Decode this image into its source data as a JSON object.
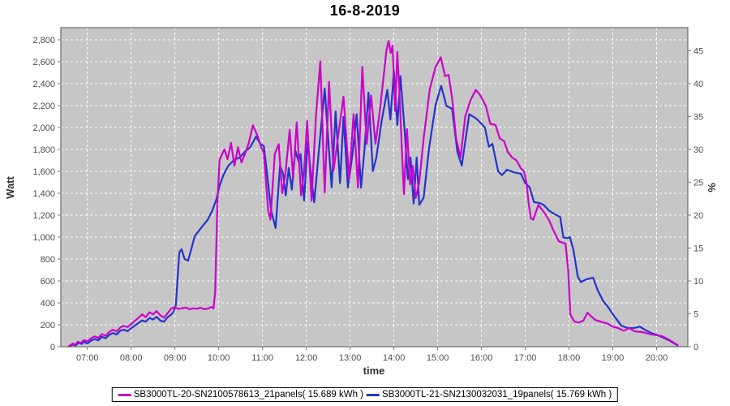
{
  "chart_data": {
    "type": "line",
    "title": "16-8-2019",
    "xlabel": "time",
    "ylabel_left": "Watt",
    "ylabel_right": "%",
    "grid": true,
    "legend_position": "bottom",
    "plot_background": "#c6c6c6",
    "gridline_color": "#ffffff",
    "border_color": "#555555",
    "tick_color": "#777777",
    "x_ticks": [
      "07:00",
      "08:00",
      "09:00",
      "10:00",
      "11:00",
      "12:00",
      "13:00",
      "14:00",
      "15:00",
      "16:00",
      "17:00",
      "18:00",
      "19:00",
      "20:00"
    ],
    "y_left_ticks": [
      "0",
      "200",
      "400",
      "600",
      "800",
      "1,000",
      "1,200",
      "1,400",
      "1,600",
      "1,800",
      "2,000",
      "2,200",
      "2,400",
      "2,600",
      "2,800"
    ],
    "y_right_ticks": [
      "0",
      "5",
      "10",
      "15",
      "20",
      "25",
      "30",
      "35",
      "40",
      "45"
    ],
    "x_range_hours": [
      6.394,
      20.713
    ],
    "y_left_range": [
      0,
      2911
    ],
    "y_right_range": [
      0,
      48.5
    ],
    "series": [
      {
        "name": "SB3000TL-20-SN2100578613_21panels( 15.689 kWh )",
        "color": "#cc00cc",
        "points": [
          [
            6.58,
            5
          ],
          [
            6.67,
            30
          ],
          [
            6.72,
            15
          ],
          [
            6.78,
            45
          ],
          [
            6.85,
            35
          ],
          [
            6.92,
            60
          ],
          [
            7.0,
            50
          ],
          [
            7.08,
            75
          ],
          [
            7.17,
            95
          ],
          [
            7.25,
            80
          ],
          [
            7.33,
            115
          ],
          [
            7.42,
            100
          ],
          [
            7.5,
            135
          ],
          [
            7.58,
            155
          ],
          [
            7.67,
            140
          ],
          [
            7.75,
            175
          ],
          [
            7.83,
            190
          ],
          [
            7.92,
            180
          ],
          [
            8.0,
            205
          ],
          [
            8.08,
            235
          ],
          [
            8.17,
            265
          ],
          [
            8.25,
            295
          ],
          [
            8.33,
            270
          ],
          [
            8.42,
            315
          ],
          [
            8.5,
            295
          ],
          [
            8.58,
            325
          ],
          [
            8.67,
            285
          ],
          [
            8.75,
            265
          ],
          [
            8.83,
            305
          ],
          [
            8.92,
            350
          ],
          [
            9.0,
            360
          ],
          [
            9.08,
            345
          ],
          [
            9.17,
            352
          ],
          [
            9.25,
            358
          ],
          [
            9.33,
            342
          ],
          [
            9.42,
            350
          ],
          [
            9.5,
            346
          ],
          [
            9.58,
            356
          ],
          [
            9.67,
            342
          ],
          [
            9.75,
            348
          ],
          [
            9.83,
            362
          ],
          [
            9.88,
            350
          ],
          [
            9.92,
            500
          ],
          [
            9.97,
            1300
          ],
          [
            10.02,
            1704
          ],
          [
            10.08,
            1760
          ],
          [
            10.13,
            1800
          ],
          [
            10.2,
            1710
          ],
          [
            10.28,
            1860
          ],
          [
            10.36,
            1650
          ],
          [
            10.44,
            1820
          ],
          [
            10.52,
            1680
          ],
          [
            10.6,
            1760
          ],
          [
            10.68,
            1850
          ],
          [
            10.78,
            2020
          ],
          [
            10.88,
            1930
          ],
          [
            10.97,
            1820
          ],
          [
            11.03,
            1768
          ],
          [
            11.08,
            1500
          ],
          [
            11.13,
            1240
          ],
          [
            11.18,
            1160
          ],
          [
            11.28,
            1760
          ],
          [
            11.37,
            1849
          ],
          [
            11.45,
            1400
          ],
          [
            11.52,
            1560
          ],
          [
            11.62,
            1980
          ],
          [
            11.7,
            1541
          ],
          [
            11.78,
            2047
          ],
          [
            11.88,
            1380
          ],
          [
            11.95,
            1600
          ],
          [
            12.02,
            2059
          ],
          [
            12.12,
            1331
          ],
          [
            12.22,
            2100
          ],
          [
            12.32,
            2602
          ],
          [
            12.42,
            1405
          ],
          [
            12.52,
            2417
          ],
          [
            12.62,
            1602
          ],
          [
            12.72,
            1900
          ],
          [
            12.85,
            2281
          ],
          [
            12.98,
            1528
          ],
          [
            13.08,
            2121
          ],
          [
            13.18,
            1452
          ],
          [
            13.28,
            2553
          ],
          [
            13.38,
            1849
          ],
          [
            13.48,
            2294
          ],
          [
            13.58,
            1850
          ],
          [
            13.68,
            2150
          ],
          [
            13.83,
            2700
          ],
          [
            13.88,
            2791
          ],
          [
            13.93,
            2680
          ],
          [
            13.97,
            2746
          ],
          [
            14.03,
            2150
          ],
          [
            14.08,
            2690
          ],
          [
            14.13,
            2300
          ],
          [
            14.18,
            1825
          ],
          [
            14.23,
            1393
          ],
          [
            14.3,
            1985
          ],
          [
            14.37,
            1479
          ],
          [
            14.43,
            1650
          ],
          [
            14.5,
            1356
          ],
          [
            14.58,
            1500
          ],
          [
            14.68,
            1900
          ],
          [
            14.82,
            2350
          ],
          [
            14.95,
            2550
          ],
          [
            15.07,
            2640
          ],
          [
            15.17,
            2467
          ],
          [
            15.25,
            2479
          ],
          [
            15.33,
            2270
          ],
          [
            15.42,
            1900
          ],
          [
            15.52,
            1726
          ],
          [
            15.63,
            2100
          ],
          [
            15.75,
            2250
          ],
          [
            15.87,
            2343
          ],
          [
            15.97,
            2295
          ],
          [
            16.1,
            2196
          ],
          [
            16.2,
            2035
          ],
          [
            16.32,
            2022
          ],
          [
            16.42,
            1900
          ],
          [
            16.52,
            1874
          ],
          [
            16.6,
            1776
          ],
          [
            16.7,
            1726
          ],
          [
            16.8,
            1700
          ],
          [
            16.9,
            1627
          ],
          [
            16.97,
            1602
          ],
          [
            17.03,
            1491
          ],
          [
            17.08,
            1300
          ],
          [
            17.13,
            1170
          ],
          [
            17.18,
            1158
          ],
          [
            17.3,
            1294
          ],
          [
            17.42,
            1232
          ],
          [
            17.55,
            1150
          ],
          [
            17.63,
            1072
          ],
          [
            17.77,
            961
          ],
          [
            17.92,
            940
          ],
          [
            17.98,
            700
          ],
          [
            18.03,
            294
          ],
          [
            18.12,
            230
          ],
          [
            18.22,
            220
          ],
          [
            18.33,
            240
          ],
          [
            18.42,
            310
          ],
          [
            18.5,
            280
          ],
          [
            18.6,
            244
          ],
          [
            18.75,
            225
          ],
          [
            18.88,
            210
          ],
          [
            19.0,
            183
          ],
          [
            19.12,
            170
          ],
          [
            19.25,
            146
          ],
          [
            19.37,
            170
          ],
          [
            19.5,
            140
          ],
          [
            19.68,
            133
          ],
          [
            19.85,
            115
          ],
          [
            20.0,
            105
          ],
          [
            20.12,
            96
          ],
          [
            20.3,
            60
          ],
          [
            20.42,
            30
          ],
          [
            20.48,
            15
          ]
        ]
      },
      {
        "name": "SB3000TL-21-SN2130032031_19panels( 15.769 kWh )",
        "color": "#2433cb",
        "points": [
          [
            6.58,
            3
          ],
          [
            6.67,
            20
          ],
          [
            6.73,
            10
          ],
          [
            6.8,
            35
          ],
          [
            6.87,
            25
          ],
          [
            6.93,
            45
          ],
          [
            7.0,
            28
          ],
          [
            7.08,
            55
          ],
          [
            7.17,
            70
          ],
          [
            7.25,
            58
          ],
          [
            7.33,
            90
          ],
          [
            7.42,
            78
          ],
          [
            7.5,
            108
          ],
          [
            7.58,
            125
          ],
          [
            7.67,
            112
          ],
          [
            7.75,
            145
          ],
          [
            7.83,
            155
          ],
          [
            7.92,
            142
          ],
          [
            8.0,
            168
          ],
          [
            8.08,
            192
          ],
          [
            8.17,
            218
          ],
          [
            8.25,
            240
          ],
          [
            8.33,
            228
          ],
          [
            8.42,
            262
          ],
          [
            8.5,
            248
          ],
          [
            8.58,
            272
          ],
          [
            8.67,
            238
          ],
          [
            8.75,
            228
          ],
          [
            8.83,
            268
          ],
          [
            8.92,
            295
          ],
          [
            8.97,
            320
          ],
          [
            9.02,
            380
          ],
          [
            9.05,
            563
          ],
          [
            9.1,
            859
          ],
          [
            9.15,
            889
          ],
          [
            9.22,
            800
          ],
          [
            9.3,
            785
          ],
          [
            9.38,
            900
          ],
          [
            9.45,
            1007
          ],
          [
            9.55,
            1060
          ],
          [
            9.65,
            1111
          ],
          [
            9.75,
            1160
          ],
          [
            9.85,
            1240
          ],
          [
            9.95,
            1350
          ],
          [
            10.02,
            1467
          ],
          [
            10.1,
            1560
          ],
          [
            10.22,
            1652
          ],
          [
            10.35,
            1704
          ],
          [
            10.48,
            1726
          ],
          [
            10.6,
            1780
          ],
          [
            10.72,
            1820
          ],
          [
            10.85,
            1916
          ],
          [
            10.95,
            1850
          ],
          [
            11.03,
            1830
          ],
          [
            11.1,
            1594
          ],
          [
            11.2,
            1237
          ],
          [
            11.3,
            1084
          ],
          [
            11.4,
            1650
          ],
          [
            11.47,
            1580
          ],
          [
            11.53,
            1380
          ],
          [
            11.6,
            1630
          ],
          [
            11.67,
            1434
          ],
          [
            11.75,
            1792
          ],
          [
            11.82,
            1694
          ],
          [
            11.87,
            1756
          ],
          [
            11.95,
            1333
          ],
          [
            12.03,
            1874
          ],
          [
            12.1,
            1600
          ],
          [
            12.18,
            1318
          ],
          [
            12.28,
            1760
          ],
          [
            12.42,
            2355
          ],
          [
            12.5,
            1900
          ],
          [
            12.58,
            1454
          ],
          [
            12.67,
            2146
          ],
          [
            12.77,
            1491
          ],
          [
            12.85,
            2096
          ],
          [
            12.95,
            1452
          ],
          [
            13.05,
            1740
          ],
          [
            13.15,
            2121
          ],
          [
            13.25,
            1452
          ],
          [
            13.33,
            1800
          ],
          [
            13.42,
            2318
          ],
          [
            13.52,
            1602
          ],
          [
            13.6,
            1726
          ],
          [
            13.72,
            2060
          ],
          [
            13.85,
            2343
          ],
          [
            13.92,
            2072
          ],
          [
            14.0,
            2516
          ],
          [
            14.08,
            2022
          ],
          [
            14.15,
            2467
          ],
          [
            14.25,
            1948
          ],
          [
            14.32,
            1528
          ],
          [
            14.38,
            1726
          ],
          [
            14.45,
            1306
          ],
          [
            14.52,
            1726
          ],
          [
            14.58,
            1294
          ],
          [
            14.68,
            1360
          ],
          [
            14.8,
            1800
          ],
          [
            14.95,
            2200
          ],
          [
            15.08,
            2380
          ],
          [
            15.2,
            2196
          ],
          [
            15.33,
            2170
          ],
          [
            15.45,
            1776
          ],
          [
            15.55,
            1652
          ],
          [
            15.72,
            2121
          ],
          [
            15.87,
            2084
          ],
          [
            16.0,
            2035
          ],
          [
            16.08,
            1998
          ],
          [
            16.17,
            1825
          ],
          [
            16.25,
            1850
          ],
          [
            16.38,
            1602
          ],
          [
            16.47,
            1565
          ],
          [
            16.58,
            1615
          ],
          [
            16.75,
            1590
          ],
          [
            16.9,
            1578
          ],
          [
            17.0,
            1491
          ],
          [
            17.1,
            1454
          ],
          [
            17.2,
            1319
          ],
          [
            17.33,
            1310
          ],
          [
            17.42,
            1294
          ],
          [
            17.55,
            1240
          ],
          [
            17.68,
            1207
          ],
          [
            17.8,
            1183
          ],
          [
            17.87,
            998
          ],
          [
            17.95,
            990
          ],
          [
            18.02,
            998
          ],
          [
            18.1,
            887
          ],
          [
            18.2,
            640
          ],
          [
            18.27,
            590
          ],
          [
            18.4,
            615
          ],
          [
            18.55,
            630
          ],
          [
            18.65,
            520
          ],
          [
            18.78,
            417
          ],
          [
            18.88,
            368
          ],
          [
            19.05,
            269
          ],
          [
            19.2,
            190
          ],
          [
            19.35,
            170
          ],
          [
            19.5,
            172
          ],
          [
            19.62,
            183
          ],
          [
            19.75,
            150
          ],
          [
            19.9,
            121
          ],
          [
            20.0,
            109
          ],
          [
            20.15,
            84
          ],
          [
            20.3,
            55
          ],
          [
            20.42,
            25
          ],
          [
            20.48,
            12
          ]
        ]
      }
    ]
  }
}
